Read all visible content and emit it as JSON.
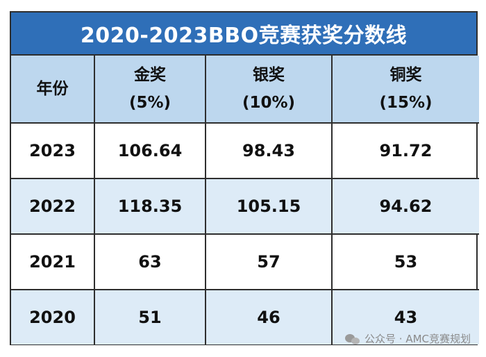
{
  "title": "2020-2023BBO竞赛获奖分数线",
  "columns": {
    "year": "年份",
    "gold": {
      "name": "金奖",
      "pct": "(5%)"
    },
    "silver": {
      "name": "银奖",
      "pct": "(10%)"
    },
    "bronze": {
      "name": "铜奖",
      "pct": "(15%)"
    }
  },
  "rows": [
    {
      "year": "2023",
      "gold": "106.64",
      "silver": "98.43",
      "bronze": "91.72"
    },
    {
      "year": "2022",
      "gold": "118.35",
      "silver": "105.15",
      "bronze": "94.62"
    },
    {
      "year": "2021",
      "gold": "63",
      "silver": "57",
      "bronze": "53"
    },
    {
      "year": "2020",
      "gold": "51",
      "silver": "46",
      "bronze": "43"
    }
  ],
  "watermark": {
    "text": "公众号 · AMC竞赛规划",
    "icon": "wechat-icon"
  },
  "colors": {
    "title_bg": "#2f6fb8",
    "header_bg": "#bdd7ee",
    "shaded_row_bg": "#ddebf7"
  }
}
